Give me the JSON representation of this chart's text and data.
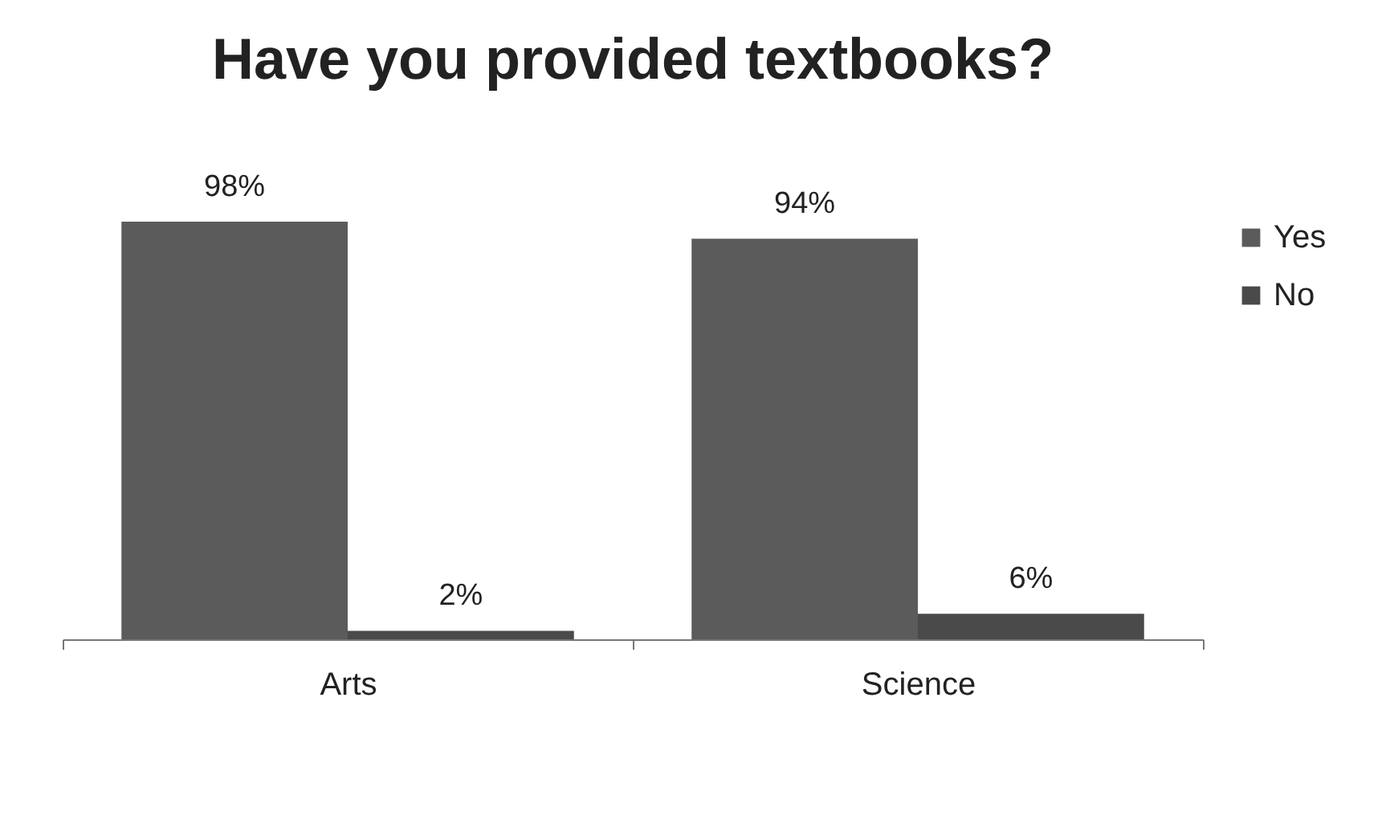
{
  "chart_data": {
    "type": "bar",
    "title": "Have you provided textbooks?",
    "categories": [
      "Arts",
      "Science"
    ],
    "series": [
      {
        "name": "Yes",
        "color": "#5b5b5b",
        "values": [
          98,
          94
        ],
        "value_labels": [
          "98%",
          "94%"
        ]
      },
      {
        "name": "No",
        "color": "#4a4a4a",
        "values": [
          2,
          6
        ],
        "value_labels": [
          "2%",
          "6%"
        ]
      }
    ],
    "legend": "right",
    "tick_labels": "x",
    "grid": false
  }
}
